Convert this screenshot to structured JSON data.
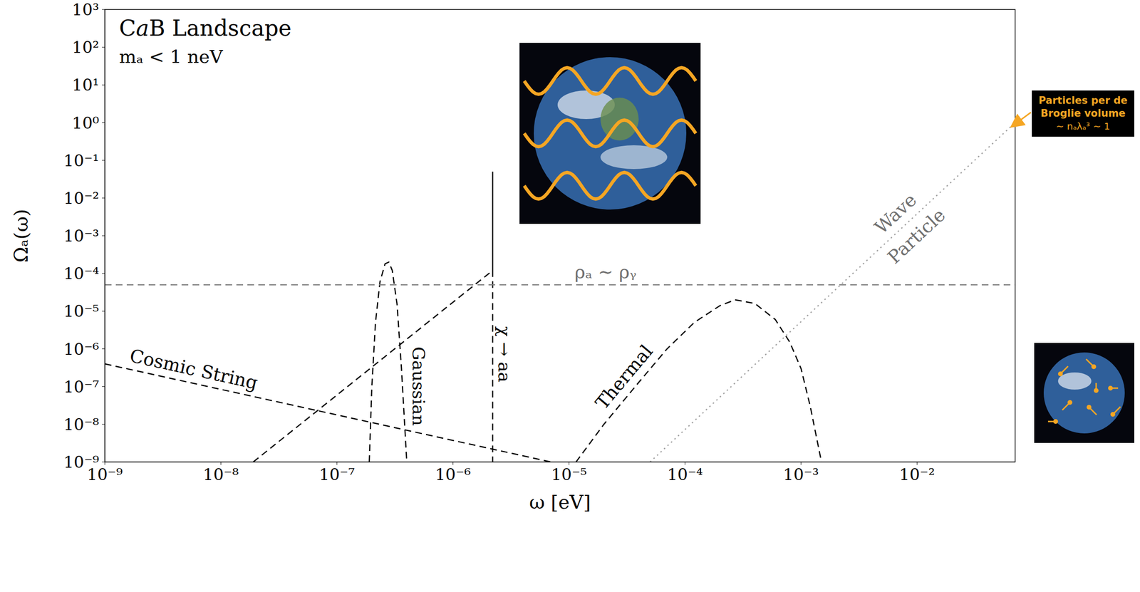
{
  "chart_data": {
    "type": "line",
    "title": "CaB Landscape",
    "subtitle": "mₐ < 1 neV",
    "x_label": "ω [eV]",
    "y_label": "Ωₐ(ω)",
    "log": true,
    "xlim": [
      1e-09,
      0.07
    ],
    "ylim": [
      1e-09,
      1000
    ],
    "xticks": [
      {
        "value": 1e-09,
        "label": "10⁻⁹"
      },
      {
        "value": 1e-08,
        "label": "10⁻⁸"
      },
      {
        "value": 1e-07,
        "label": "10⁻⁷"
      },
      {
        "value": 1e-06,
        "label": "10⁻⁶"
      },
      {
        "value": 1e-05,
        "label": "10⁻⁵"
      },
      {
        "value": 0.0001,
        "label": "10⁻⁴"
      },
      {
        "value": 0.001,
        "label": "10⁻³"
      },
      {
        "value": 0.01,
        "label": "10⁻²"
      }
    ],
    "yticks": [
      {
        "value": 1e-09,
        "label": "10⁻⁹"
      },
      {
        "value": 1e-08,
        "label": "10⁻⁸"
      },
      {
        "value": 1e-07,
        "label": "10⁻⁷"
      },
      {
        "value": 1e-06,
        "label": "10⁻⁶"
      },
      {
        "value": 1e-05,
        "label": "10⁻⁵"
      },
      {
        "value": 0.0001,
        "label": "10⁻⁴"
      },
      {
        "value": 0.001,
        "label": "10⁻³"
      },
      {
        "value": 0.01,
        "label": "10⁻²"
      },
      {
        "value": 0.1,
        "label": "10⁻¹"
      },
      {
        "value": 1,
        "label": "10⁰"
      },
      {
        "value": 10,
        "label": "10¹"
      },
      {
        "value": 100,
        "label": "10²"
      },
      {
        "value": 1000,
        "label": "10³"
      }
    ],
    "series": [
      {
        "name": "Cosmic String",
        "color": "#000000",
        "line_style": "dashed",
        "x": [
          1e-09,
          7e-06
        ],
        "values": [
          4e-07,
          1e-09
        ]
      },
      {
        "name": "χ → aa",
        "color": "#000000",
        "line_style": "dashed",
        "x": [
          1.9e-08,
          2.2e-06,
          2.2e-06,
          2.2e-06
        ],
        "values": [
          1e-09,
          0.00012,
          0.05,
          1e-09
        ]
      },
      {
        "name": "Gaussian",
        "color": "#000000",
        "line_style": "dashed",
        "x": [
          1.9e-07,
          2e-07,
          2.15e-07,
          2.35e-07,
          2.6e-07,
          2.8e-07,
          3e-07,
          3.3e-07,
          3.6e-07,
          4e-07
        ],
        "values": [
          1e-09,
          1e-07,
          5e-06,
          6e-05,
          0.00018,
          0.0002,
          0.00012,
          1.5e-05,
          3e-07,
          1e-09
        ]
      },
      {
        "name": "Thermal",
        "color": "#000000",
        "line_style": "dashed",
        "x": [
          1.15e-05,
          2e-05,
          4e-05,
          7e-05,
          0.00012,
          0.0002,
          0.00027,
          0.0004,
          0.0006,
          0.0008,
          0.001,
          0.0012,
          0.0015
        ],
        "values": [
          1e-09,
          1e-08,
          1.3e-07,
          1e-06,
          5e-06,
          1.4e-05,
          2e-05,
          1.6e-05,
          6e-06,
          1.5e-06,
          3e-07,
          3e-08,
          1e-09
        ]
      },
      {
        "name": "ρₐ ∼ ρᵧ",
        "color": "#808080",
        "line_style": "dashed",
        "x": [
          1e-09,
          0.07
        ],
        "values": [
          5e-05,
          5e-05
        ]
      },
      {
        "labels": [
          "Wave",
          "Particle"
        ],
        "color": "#a0a0a0",
        "line_style": "dotted",
        "x": [
          5e-05,
          0.07
        ],
        "values": [
          1e-09,
          1
        ]
      }
    ],
    "annotation": {
      "text": "Particles per de Broglie volume",
      "formula": "∼ nₐλₐ³ ∼ 1",
      "color": "#f5a623"
    }
  }
}
